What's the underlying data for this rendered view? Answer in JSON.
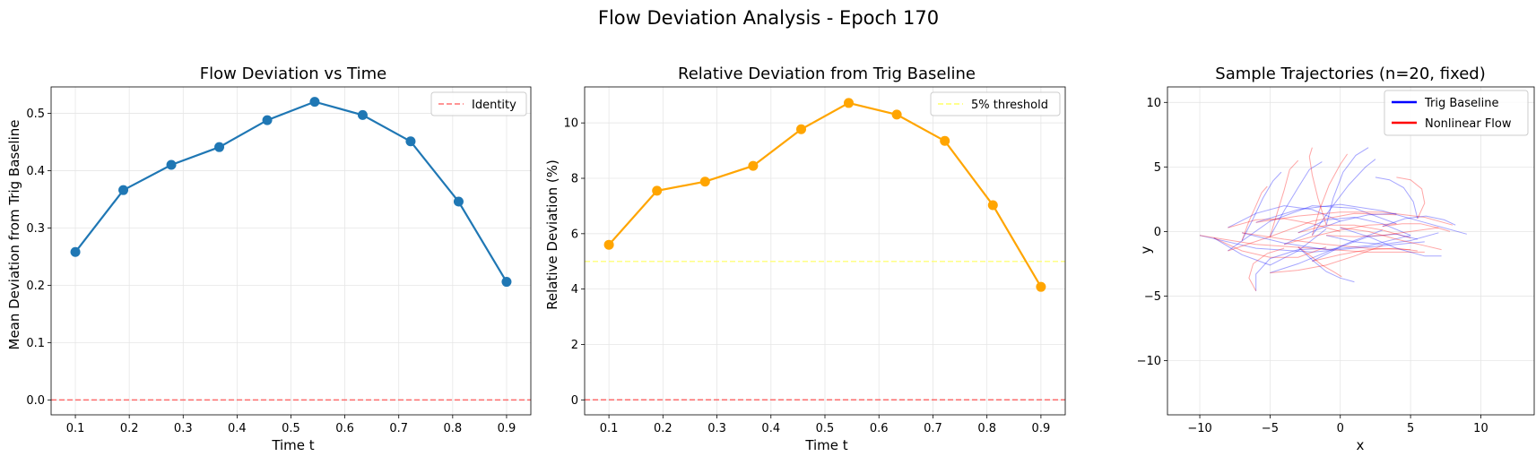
{
  "figure": {
    "title": "Flow Deviation Analysis - Epoch 170"
  },
  "colors": {
    "series_blue": "#1f77b4",
    "series_orange": "#ffa500",
    "identity_line": "#ff4c4c",
    "threshold_line": "#ffff66",
    "trig_baseline": "#0000ff",
    "nonlinear_flow": "#ff0000",
    "grid": "#e6e6e6"
  },
  "chart_data": [
    {
      "type": "line",
      "title": "Flow Deviation vs Time",
      "xlabel": "Time t",
      "ylabel": "Mean Deviation from Trig Baseline",
      "xlim": [
        0.055,
        0.945
      ],
      "ylim": [
        -0.026,
        0.546
      ],
      "xticks": [
        "0.1",
        "0.2",
        "0.3",
        "0.4",
        "0.5",
        "0.6",
        "0.7",
        "0.8",
        "0.9"
      ],
      "yticks": [
        "0.0",
        "0.1",
        "0.2",
        "0.3",
        "0.4",
        "0.5"
      ],
      "grid": true,
      "legend_position": "top-right",
      "x": [
        0.1,
        0.189,
        0.278,
        0.367,
        0.456,
        0.544,
        0.633,
        0.722,
        0.811,
        0.9
      ],
      "series": [
        {
          "values": [
            0.258,
            0.366,
            0.41,
            0.441,
            0.488,
            0.52,
            0.497,
            0.451,
            0.346,
            0.206
          ],
          "color": "#1f77b4"
        }
      ],
      "reference_lines": [
        {
          "y": 0.0,
          "name": "Identity",
          "style": "dashed",
          "color": "#ff4c4c"
        }
      ]
    },
    {
      "type": "line",
      "title": "Relative Deviation from Trig Baseline",
      "xlabel": "Time t",
      "ylabel": "Relative Deviation (%)",
      "xlim": [
        0.055,
        0.945
      ],
      "ylim": [
        -0.54,
        11.3
      ],
      "xticks": [
        "0.1",
        "0.2",
        "0.3",
        "0.4",
        "0.5",
        "0.6",
        "0.7",
        "0.8",
        "0.9"
      ],
      "yticks": [
        "0",
        "2",
        "4",
        "6",
        "8",
        "10"
      ],
      "grid": true,
      "legend_position": "top-right",
      "x": [
        0.1,
        0.189,
        0.278,
        0.367,
        0.456,
        0.544,
        0.633,
        0.722,
        0.811,
        0.9
      ],
      "series": [
        {
          "values": [
            5.6,
            7.55,
            7.88,
            8.45,
            9.77,
            10.72,
            10.3,
            9.35,
            7.03,
            4.08
          ],
          "color": "#ffa500"
        }
      ],
      "reference_lines": [
        {
          "y": 5.0,
          "name": "5% threshold",
          "style": "dashed",
          "color": "#ffff66"
        },
        {
          "y": 0.0,
          "style": "dashed",
          "color": "#ff4c4c"
        }
      ]
    },
    {
      "type": "line",
      "title": "Sample Trajectories (n=20, fixed)",
      "xlabel": "x",
      "ylabel": "y",
      "xlim": [
        -12.3,
        13.8
      ],
      "ylim": [
        -14.2,
        11.2
      ],
      "xticks": [
        "−10",
        "−5",
        "0",
        "5",
        "10"
      ],
      "yticks": [
        "−10",
        "−5",
        "0",
        "5",
        "10"
      ],
      "grid": true,
      "legend_position": "top-right",
      "series": [
        {
          "name": "Trig Baseline",
          "color": "#0000ff"
        },
        {
          "name": "Nonlinear Flow",
          "color": "#ff0000"
        }
      ],
      "trajectories": [
        {
          "trig": [
            [
              -10,
              -0.3
            ],
            [
              -6,
              -1.3
            ],
            [
              -2,
              -1.6
            ],
            [
              2,
              -1.2
            ],
            [
              6,
              -0.8
            ]
          ],
          "flow": [
            [
              -10,
              -0.3
            ],
            [
              -6,
              -1.0
            ],
            [
              -2,
              -1.3
            ],
            [
              2,
              -1.6
            ],
            [
              6,
              -1.6
            ]
          ]
        },
        {
          "trig": [
            [
              -9,
              -0.5
            ],
            [
              -7,
              -1.8
            ],
            [
              -5,
              -2.6
            ],
            [
              -3,
              -1.5
            ],
            [
              -1,
              0.2
            ]
          ],
          "flow": [
            [
              -9,
              -0.5
            ],
            [
              -7,
              -1.5
            ],
            [
              -5,
              -2.0
            ],
            [
              -3,
              -2.0
            ],
            [
              -1,
              -1.2
            ]
          ]
        },
        {
          "trig": [
            [
              -8,
              0.3
            ],
            [
              -6,
              1.4
            ],
            [
              -4,
              2.0
            ],
            [
              -2,
              1.7
            ],
            [
              0,
              0.8
            ]
          ],
          "flow": [
            [
              -8,
              0.3
            ],
            [
              -6,
              0.9
            ],
            [
              -4,
              1.0
            ],
            [
              -2,
              0.6
            ],
            [
              0,
              0.0
            ]
          ]
        },
        {
          "trig": [
            [
              -8,
              -1.5
            ],
            [
              -5,
              0.8
            ],
            [
              -2,
              2.0
            ],
            [
              1,
              1.8
            ],
            [
              4,
              0.6
            ]
          ],
          "flow": [
            [
              -8,
              -1.5
            ],
            [
              -5,
              -0.4
            ],
            [
              -2,
              0.8
            ],
            [
              1,
              1.4
            ],
            [
              4,
              1.3
            ]
          ]
        },
        {
          "trig": [
            [
              -7,
              -0.1
            ],
            [
              -4,
              -0.9
            ],
            [
              -1,
              -1.4
            ],
            [
              2,
              -1.1
            ],
            [
              5,
              -0.3
            ]
          ],
          "flow": [
            [
              -7,
              -0.1
            ],
            [
              -4,
              -0.6
            ],
            [
              -1,
              -1.0
            ],
            [
              2,
              -1.3
            ],
            [
              5,
              -1.4
            ]
          ]
        },
        {
          "trig": [
            [
              -6,
              0.7
            ],
            [
              -3,
              1.7
            ],
            [
              0,
              2.1
            ],
            [
              3,
              1.6
            ],
            [
              6,
              0.7
            ],
            [
              9,
              -0.2
            ]
          ],
          "flow": [
            [
              -6,
              0.7
            ],
            [
              -3,
              1.2
            ],
            [
              0,
              1.5
            ],
            [
              3,
              1.5
            ],
            [
              6,
              1.1
            ],
            [
              8,
              0.5
            ]
          ]
        },
        {
          "trig": [
            [
              -6,
              -4.6
            ],
            [
              -6,
              -3.3
            ],
            [
              -5,
              -2.1
            ],
            [
              -3,
              -1.4
            ],
            [
              -1,
              -1.3
            ]
          ],
          "flow": [
            [
              -6,
              -4.6
            ],
            [
              -6.5,
              -3.6
            ],
            [
              -6.2,
              -2.5
            ],
            [
              -5.2,
              -1.7
            ],
            [
              -4,
              -1.3
            ]
          ]
        },
        {
          "trig": [
            [
              -5,
              -3.2
            ],
            [
              -3,
              -2.5
            ],
            [
              -1,
              -1.6
            ],
            [
              1,
              -0.7
            ],
            [
              3,
              0.1
            ]
          ],
          "flow": [
            [
              -5,
              -3.2
            ],
            [
              -3,
              -3.0
            ],
            [
              -1,
              -2.6
            ],
            [
              1,
              -1.9
            ],
            [
              3,
              -1.1
            ]
          ]
        },
        {
          "trig": [
            [
              -4,
              -1.0
            ],
            [
              -2,
              0.0
            ],
            [
              0,
              0.8
            ],
            [
              2,
              1.3
            ],
            [
              4,
              1.4
            ]
          ],
          "flow": [
            [
              -4,
              -1.0
            ],
            [
              -2,
              -0.4
            ],
            [
              0,
              0.1
            ],
            [
              2,
              0.5
            ],
            [
              4,
              0.6
            ]
          ]
        },
        {
          "trig": [
            [
              -3,
              -0.1
            ],
            [
              -1,
              0.9
            ],
            [
              1,
              1.1
            ],
            [
              3,
              0.6
            ],
            [
              5,
              -0.3
            ]
          ],
          "flow": [
            [
              -3,
              -0.1
            ],
            [
              -1,
              0.5
            ],
            [
              1,
              0.5
            ],
            [
              3,
              0.1
            ],
            [
              5,
              -0.5
            ]
          ]
        },
        {
          "trig": [
            [
              -2,
              -2.3
            ],
            [
              0,
              -1.2
            ],
            [
              2,
              -0.4
            ],
            [
              4,
              -0.2
            ],
            [
              5.5,
              -0.6
            ]
          ],
          "flow": [
            [
              -2,
              -2.3
            ],
            [
              0,
              -1.8
            ],
            [
              2,
              -1.4
            ],
            [
              4,
              -1.3
            ],
            [
              5.5,
              -1.5
            ]
          ]
        },
        {
          "trig": [
            [
              -1,
              -0.3
            ],
            [
              1,
              -0.8
            ],
            [
              3,
              -1.0
            ],
            [
              5,
              -0.7
            ],
            [
              7,
              -0.1
            ]
          ],
          "flow": [
            [
              -1,
              -0.3
            ],
            [
              1,
              -0.4
            ],
            [
              3,
              -0.3
            ],
            [
              5,
              0.0
            ],
            [
              7,
              0.3
            ]
          ]
        },
        {
          "trig": [
            [
              0,
              0.3
            ],
            [
              2,
              -0.4
            ],
            [
              4,
              -1.3
            ],
            [
              6,
              -1.9
            ],
            [
              7.2,
              -1.9
            ]
          ],
          "flow": [
            [
              0,
              0.3
            ],
            [
              2,
              0.0
            ],
            [
              4,
              -0.6
            ],
            [
              6,
              -1.1
            ],
            [
              7.2,
              -1.4
            ]
          ]
        },
        {
          "trig": [
            [
              -5,
              -0.4
            ],
            [
              -4,
              1.6
            ],
            [
              -3,
              3.4
            ],
            [
              -2.2,
              4.8
            ],
            [
              -1.3,
              5.4
            ]
          ],
          "flow": [
            [
              -5,
              -0.4
            ],
            [
              -4.5,
              1.4
            ],
            [
              -4,
              3.2
            ],
            [
              -3.6,
              4.8
            ],
            [
              -3,
              5.5
            ]
          ]
        },
        {
          "trig": [
            [
              -7,
              -0.7
            ],
            [
              -6.2,
              1.0
            ],
            [
              -5.5,
              2.6
            ],
            [
              -4.8,
              3.9
            ],
            [
              -4.2,
              4.6
            ]
          ],
          "flow": [
            [
              -7,
              -0.7
            ],
            [
              -6.5,
              0.8
            ],
            [
              -6,
              2.0
            ],
            [
              -5.6,
              3.0
            ],
            [
              -5.2,
              3.5
            ]
          ]
        },
        {
          "trig": [
            [
              -2,
              -0.3
            ],
            [
              -0.8,
              1.6
            ],
            [
              0.6,
              3.6
            ],
            [
              1.8,
              5.0
            ],
            [
              2.5,
              5.6
            ]
          ],
          "flow": [
            [
              -2,
              -0.3
            ],
            [
              -1.5,
              1.6
            ],
            [
              -0.8,
              3.6
            ],
            [
              0,
              5.2
            ],
            [
              0.5,
              6.0
            ]
          ]
        },
        {
          "trig": [
            [
              -1,
              0.5
            ],
            [
              -0.5,
              2.6
            ],
            [
              0.2,
              4.6
            ],
            [
              1.1,
              5.9
            ],
            [
              2.0,
              6.5
            ]
          ],
          "flow": [
            [
              -1,
              0.5
            ],
            [
              -1.6,
              2.6
            ],
            [
              -2.0,
              4.4
            ],
            [
              -2.2,
              5.8
            ],
            [
              -2.0,
              6.5
            ]
          ]
        },
        {
          "trig": [
            [
              5.5,
              1.0
            ],
            [
              5.2,
              2.3
            ],
            [
              4.5,
              3.4
            ],
            [
              3.5,
              4.0
            ],
            [
              2.5,
              4.2
            ]
          ],
          "flow": [
            [
              5.5,
              1.0
            ],
            [
              6.0,
              2.2
            ],
            [
              5.8,
              3.3
            ],
            [
              5.0,
              4.0
            ],
            [
              4.0,
              4.2
            ]
          ]
        },
        {
          "trig": [
            [
              3,
              0.4
            ],
            [
              4.6,
              1.0
            ],
            [
              6.1,
              1.2
            ],
            [
              7.4,
              0.9
            ],
            [
              8.2,
              0.5
            ]
          ],
          "flow": [
            [
              3,
              0.4
            ],
            [
              4.4,
              0.6
            ],
            [
              5.7,
              0.6
            ],
            [
              6.9,
              0.3
            ],
            [
              7.8,
              0.0
            ]
          ]
        },
        {
          "trig": [
            [
              -3,
              -1.2
            ],
            [
              -2,
              -2.2
            ],
            [
              -1,
              -3.1
            ],
            [
              0,
              -3.6
            ],
            [
              1,
              -3.9
            ]
          ],
          "flow": [
            [
              -3,
              -1.2
            ],
            [
              -2.1,
              -1.9
            ],
            [
              -1.3,
              -2.6
            ],
            [
              -0.5,
              -3.1
            ],
            [
              0.1,
              -3.5
            ]
          ]
        }
      ]
    }
  ]
}
